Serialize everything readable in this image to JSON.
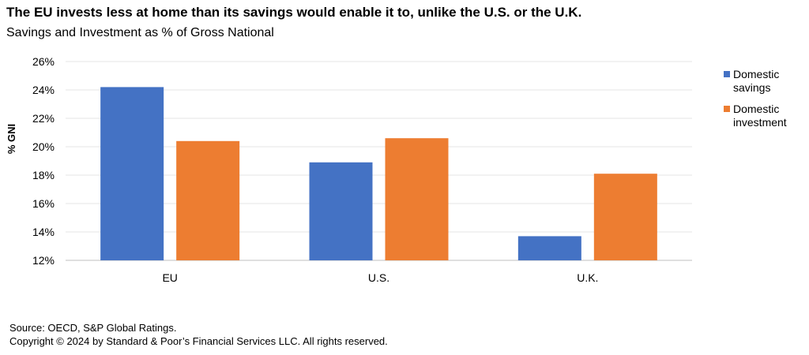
{
  "title": "The EU invests less at home than its savings would enable it to, unlike the U.S. or the U.K.",
  "subtitle": "Savings and Investment as % of Gross National",
  "footer": {
    "source": "Source: OECD, S&P Global Ratings.",
    "copyright": "Copyright © 2024 by Standard & Poor’s Financial Services LLC. All rights reserved."
  },
  "legend": [
    {
      "label": "Domestic savings",
      "color": "#4472C4"
    },
    {
      "label": "Domestic investment",
      "color": "#ED7D31"
    }
  ],
  "chart_data": {
    "type": "bar",
    "title": "The EU invests less at home than its savings would enable it to, unlike the U.S. or the U.K.",
    "subtitle": "Savings and Investment as % of Gross National",
    "xlabel": "",
    "ylabel": "% GNI",
    "categories": [
      "EU",
      "U.S.",
      "U.K."
    ],
    "series": [
      {
        "name": "Domestic savings",
        "values": [
          24.2,
          18.9,
          13.7
        ],
        "color": "#4472C4"
      },
      {
        "name": "Domestic investment",
        "values": [
          20.4,
          20.6,
          18.1
        ],
        "color": "#ED7D31"
      }
    ],
    "ylim": [
      12,
      26
    ],
    "yticks": [
      12,
      14,
      16,
      18,
      20,
      22,
      24,
      26
    ],
    "ytick_labels": [
      "12%",
      "14%",
      "16%",
      "18%",
      "20%",
      "22%",
      "24%",
      "26%"
    ],
    "grid": true,
    "legend_position": "right"
  }
}
